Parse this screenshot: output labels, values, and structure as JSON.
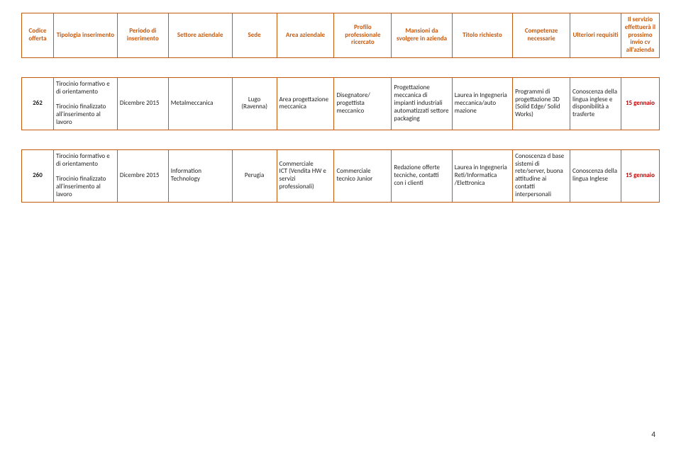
{
  "headers": [
    "Codice offerta",
    "Tipologia inserimento",
    "Periodo di inserimento",
    "Settore aziendale",
    "Sede",
    "Area aziendale",
    "Profilo professionale ricercato",
    "Mansioni da svolgere in azienda",
    "Titolo richiesto",
    "Competenze necessarie",
    "Ulteriori requisiti",
    "Il servizio effettuerà il prossimo invio cv all'azienda"
  ],
  "rows": [
    {
      "codice": "262",
      "tipologia": "Tirocinio formativo e di orientamento\n\nTirocinio finalizzato all'inserimento al lavoro",
      "periodo": "Dicembre 2015",
      "settore": "Metalmeccanica",
      "sede": "Lugo (Ravenna)",
      "area": "Area progettazione meccanica",
      "profilo": "Disegnatore/ progettista meccanico",
      "mansioni": "Progettazione meccanica di impianti industriali automatizzati settore packaging",
      "titolo": "Laurea in Ingegneria meccanica/auto mazione",
      "competenze": "Programmi di progettazione 3D (Solid Edge/ Solid Works)",
      "requisiti": "Conoscenza della lingua inglese e disponibilità a trasferte",
      "deadline": "15 gennaio"
    },
    {
      "codice": "260",
      "tipologia": "Tirocinio formativo e di orientamento\n\nTirocinio finalizzato all'inserimento al lavoro",
      "periodo": "Dicembre 2015",
      "settore": "Information Technology",
      "sede": "Perugia",
      "area": "Commerciale\nICT (Vendita HW e servizi professionali)",
      "profilo": "Commerciale tecnico Junior",
      "mansioni": "Redazione offerte tecniche, contatti con i clienti",
      "titolo": "Laurea in Ingegneria Reti/Informatica /Elettronica",
      "competenze": "Conoscenza d base sistemi di rete/server, buona attitudine ai contatti interpersonali",
      "requisiti": "Conoscenza della lingua Inglese",
      "deadline": "15 gennaio"
    }
  ],
  "pageNumber": "4"
}
